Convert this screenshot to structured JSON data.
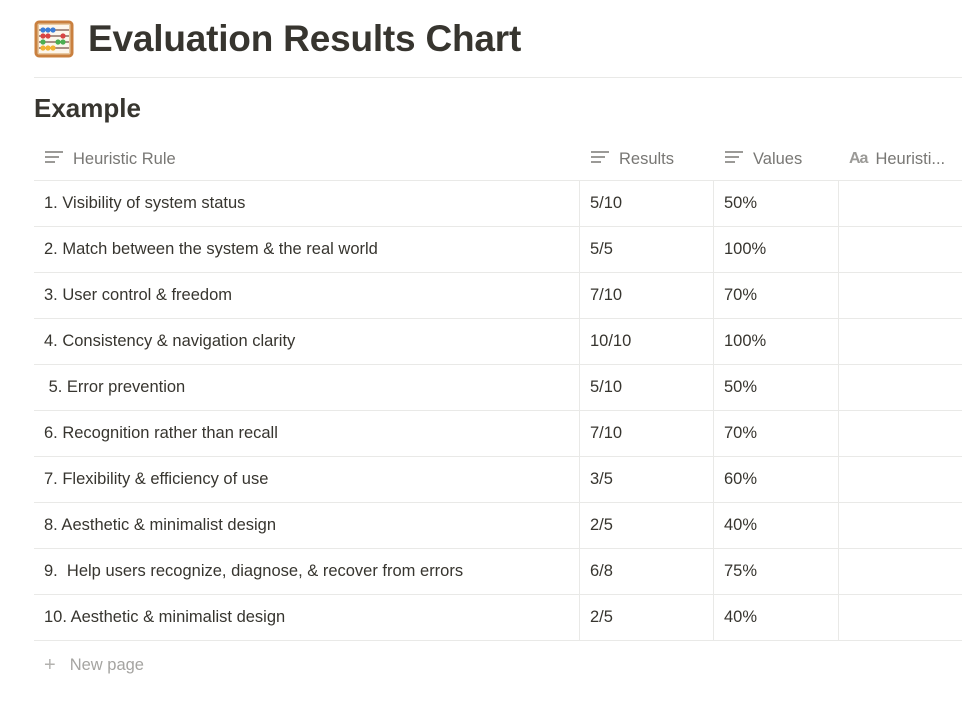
{
  "page": {
    "title": "Evaluation Results Chart",
    "icon": "abacus-icon"
  },
  "database": {
    "title": "Example",
    "columns": [
      {
        "label": "Heuristic Rule",
        "icon": "text-lines-icon"
      },
      {
        "label": "Results",
        "icon": "text-lines-icon"
      },
      {
        "label": "Values",
        "icon": "text-lines-icon"
      },
      {
        "label": "Heuristi...",
        "icon": "title-aa-icon",
        "icon_text": "Aa"
      }
    ],
    "rows": [
      {
        "rule": "1. Visibility of system status",
        "results": "5/10",
        "values": "50%",
        "extra": ""
      },
      {
        "rule": "2. Match between the system & the real world",
        "results": "5/5",
        "values": "100%",
        "extra": ""
      },
      {
        "rule": "3. User control & freedom",
        "results": "7/10",
        "values": "70%",
        "extra": ""
      },
      {
        "rule": "4. Consistency & navigation clarity",
        "results": "10/10",
        "values": "100%",
        "extra": ""
      },
      {
        "rule": " 5. Error prevention",
        "results": "5/10",
        "values": "50%",
        "extra": ""
      },
      {
        "rule": "6. Recognition rather than recall",
        "results": "7/10",
        "values": "70%",
        "extra": ""
      },
      {
        "rule": "7. Flexibility & efficiency of use",
        "results": "3/5",
        "values": "60%",
        "extra": ""
      },
      {
        "rule": "8. Aesthetic & minimalist design",
        "results": "2/5",
        "values": "40%",
        "extra": ""
      },
      {
        "rule": "9.  Help users recognize, diagnose, & recover from errors",
        "results": "6/8",
        "values": "75%",
        "extra": ""
      },
      {
        "rule": "10. Aesthetic & minimalist design",
        "results": "2/5",
        "values": "40%",
        "extra": ""
      }
    ],
    "new_page_label": "New page"
  },
  "colors": {
    "text": "#37352f",
    "muted": "#787774",
    "divider": "#e9e9e7"
  }
}
